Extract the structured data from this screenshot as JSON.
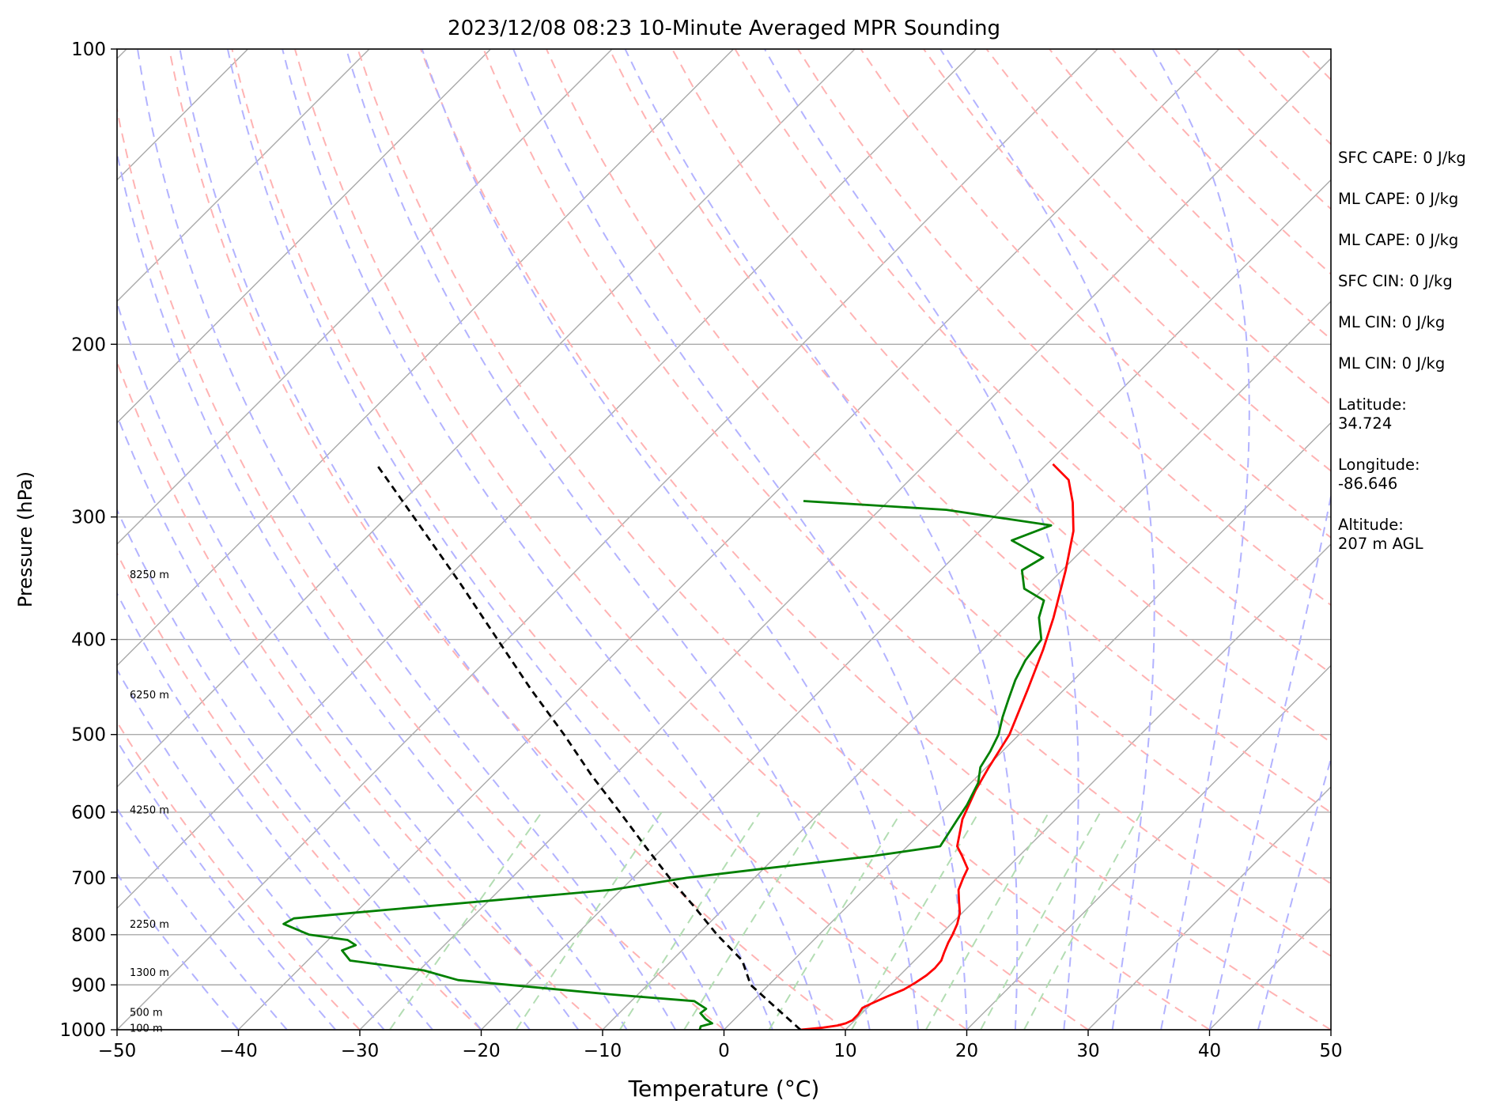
{
  "chart_data": {
    "type": "line",
    "title": "2023/12/08 08:23 10-Minute Averaged MPR Sounding",
    "xlabel": "Temperature (°C)",
    "ylabel": "Pressure (hPa)",
    "xlim": [
      -50,
      50
    ],
    "ylim": [
      1000,
      100
    ],
    "yscale": "log",
    "skew": true,
    "xticks": [
      "−50",
      "−40",
      "−30",
      "−20",
      "−10",
      "0",
      "10",
      "20",
      "30",
      "40",
      "50"
    ],
    "yticks": [
      "100",
      "200",
      "300",
      "400",
      "500",
      "600",
      "700",
      "800",
      "900",
      "1000"
    ],
    "grid": true,
    "height_labels": [
      {
        "text": "8250 m",
        "pressure": 343
      },
      {
        "text": "6250 m",
        "pressure": 455
      },
      {
        "text": "4250 m",
        "pressure": 596
      },
      {
        "text": "2250 m",
        "pressure": 780
      },
      {
        "text": "1300 m",
        "pressure": 873
      },
      {
        "text": "500 m",
        "pressure": 959
      },
      {
        "text": "100 m",
        "pressure": 995
      }
    ],
    "series": [
      {
        "key": "temperature",
        "color": "#ff0000",
        "points": [
          [
            1000,
            6.3
          ],
          [
            995,
            8.0
          ],
          [
            990,
            9.0
          ],
          [
            985,
            9.5
          ],
          [
            978,
            9.8
          ],
          [
            965,
            9.8
          ],
          [
            950,
            9.6
          ],
          [
            940,
            10.0
          ],
          [
            925,
            10.7
          ],
          [
            910,
            11.5
          ],
          [
            895,
            11.9
          ],
          [
            880,
            12.2
          ],
          [
            865,
            12.3
          ],
          [
            850,
            12.2
          ],
          [
            835,
            11.8
          ],
          [
            815,
            11.3
          ],
          [
            800,
            11.0
          ],
          [
            780,
            10.5
          ],
          [
            760,
            9.8
          ],
          [
            740,
            8.8
          ],
          [
            720,
            7.8
          ],
          [
            700,
            7.2
          ],
          [
            685,
            6.8
          ],
          [
            665,
            5.3
          ],
          [
            650,
            4.1
          ],
          [
            610,
            2.3
          ],
          [
            570,
            1.0
          ],
          [
            540,
            0.2
          ],
          [
            500,
            -0.8
          ],
          [
            450,
            -3.0
          ],
          [
            410,
            -5.0
          ],
          [
            380,
            -6.8
          ],
          [
            340,
            -9.7
          ],
          [
            310,
            -12.3
          ],
          [
            290,
            -14.7
          ],
          [
            275,
            -16.9
          ],
          [
            265,
            -19.5
          ]
        ]
      },
      {
        "key": "dewpoint",
        "color": "#008000",
        "points": [
          [
            1000,
            -2.0
          ],
          [
            992,
            -2.2
          ],
          [
            985,
            -1.5
          ],
          [
            975,
            -2.4
          ],
          [
            962,
            -3.3
          ],
          [
            952,
            -3.2
          ],
          [
            935,
            -4.8
          ],
          [
            920,
            -12.4
          ],
          [
            890,
            -26.0
          ],
          [
            870,
            -29.6
          ],
          [
            850,
            -36.5
          ],
          [
            830,
            -38.0
          ],
          [
            820,
            -37.3
          ],
          [
            810,
            -38.4
          ],
          [
            800,
            -42.0
          ],
          [
            780,
            -45.0
          ],
          [
            770,
            -44.6
          ],
          [
            760,
            -40.2
          ],
          [
            720,
            -20.8
          ],
          [
            700,
            -15.6
          ],
          [
            685,
            -10.0
          ],
          [
            665,
            -2.0
          ],
          [
            650,
            2.7
          ],
          [
            610,
            1.9
          ],
          [
            590,
            1.5
          ],
          [
            560,
            0.6
          ],
          [
            540,
            -0.5
          ],
          [
            520,
            -1.0
          ],
          [
            500,
            -1.7
          ],
          [
            480,
            -2.8
          ],
          [
            460,
            -3.8
          ],
          [
            440,
            -4.8
          ],
          [
            420,
            -5.6
          ],
          [
            400,
            -6.0
          ],
          [
            380,
            -8.0
          ],
          [
            365,
            -9.0
          ],
          [
            355,
            -11.6
          ],
          [
            340,
            -13.3
          ],
          [
            330,
            -12.6
          ],
          [
            317,
            -16.6
          ],
          [
            306,
            -14.6
          ],
          [
            295,
            -24.5
          ],
          [
            289,
            -37.0
          ]
        ]
      },
      {
        "key": "parcel",
        "color": "#000000",
        "dashed": true,
        "points": [
          [
            1000,
            6.3
          ],
          [
            950,
            2.5
          ],
          [
            900,
            -1.5
          ],
          [
            850,
            -4.2
          ],
          [
            800,
            -8.4
          ],
          [
            750,
            -12.5
          ],
          [
            700,
            -17.0
          ],
          [
            650,
            -21.6
          ],
          [
            600,
            -26.5
          ],
          [
            550,
            -31.9
          ],
          [
            500,
            -37.5
          ],
          [
            450,
            -43.9
          ],
          [
            400,
            -50.8
          ],
          [
            350,
            -58.6
          ],
          [
            300,
            -67.8
          ],
          [
            266,
            -75.0
          ]
        ]
      }
    ]
  },
  "info": {
    "sfc_cape": "SFC CAPE: 0 J/kg",
    "ml_cape_1": "ML CAPE: 0 J/kg",
    "ml_cape_2": "ML CAPE: 0 J/kg",
    "sfc_cin": "SFC CIN: 0 J/kg",
    "ml_cin_1": "ML CIN: 0 J/kg",
    "ml_cin_2": "ML CIN: 0 J/kg",
    "latitude": "Latitude:\n34.724",
    "longitude": "Longitude:\n-86.646",
    "altitude": "Altitude:\n207 m AGL"
  },
  "colors": {
    "isobar": "#aaaaaa",
    "isotherm": "#aaaaaa",
    "dry_adiabat": "#ffb3b3",
    "moist_adiabat": "#b3b3ff",
    "mixing_ratio": "#b3ddb3"
  }
}
